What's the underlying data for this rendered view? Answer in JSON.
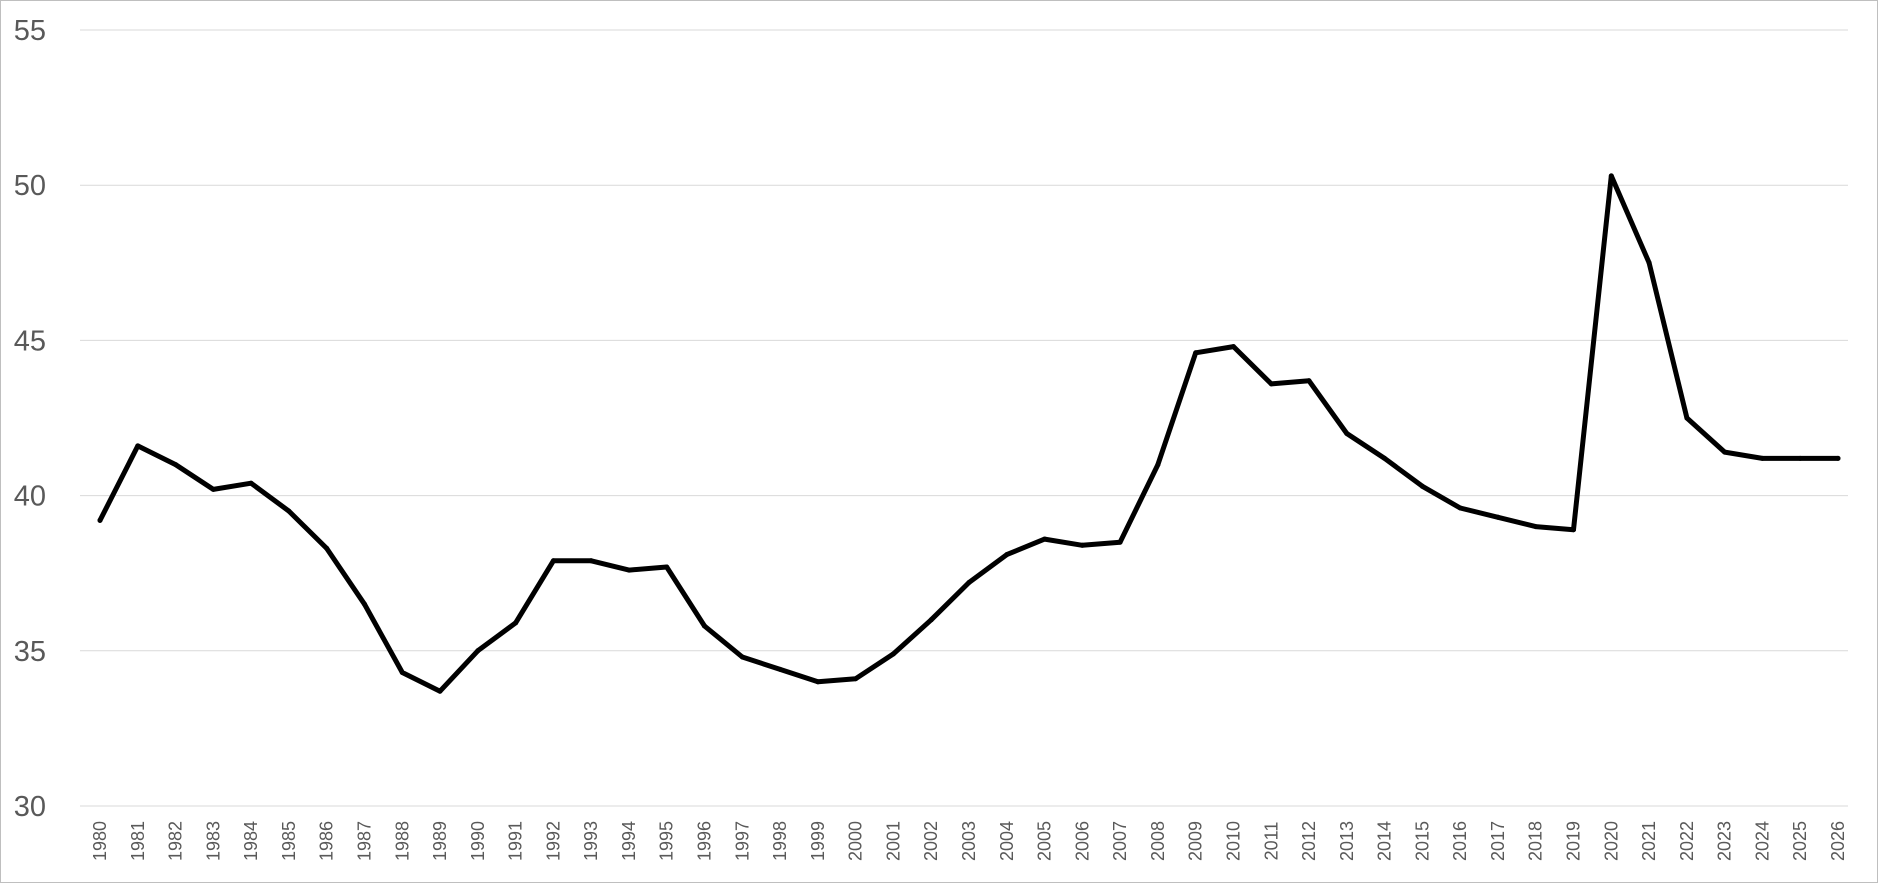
{
  "chart_data": {
    "type": "line",
    "title": "",
    "xlabel": "",
    "ylabel": "",
    "ylim": [
      30,
      55
    ],
    "yticks": [
      "30",
      "35",
      "40",
      "45",
      "50",
      "55"
    ],
    "grid": "horizontal",
    "legend": "none",
    "line_color": "#000000",
    "grid_color": "#d9d9d9",
    "tick_color": "#595959",
    "categories": [
      "1980",
      "1981",
      "1982",
      "1983",
      "1984",
      "1985",
      "1986",
      "1987",
      "1988",
      "1989",
      "1990",
      "1991",
      "1992",
      "1993",
      "1994",
      "1995",
      "1996",
      "1997",
      "1998",
      "1999",
      "2000",
      "2001",
      "2002",
      "2003",
      "2004",
      "2005",
      "2006",
      "2007",
      "2008",
      "2009",
      "2010",
      "2011",
      "2012",
      "2013",
      "2014",
      "2015",
      "2016",
      "2017",
      "2018",
      "2019",
      "2020",
      "2021",
      "2022",
      "2023",
      "2024",
      "2025",
      "2026"
    ],
    "series": [
      {
        "name": "",
        "values": [
          39.2,
          41.6,
          41.0,
          40.2,
          40.4,
          39.5,
          38.3,
          36.5,
          34.3,
          33.7,
          35.0,
          35.9,
          37.9,
          37.9,
          37.6,
          37.7,
          35.8,
          34.8,
          34.4,
          34.0,
          34.1,
          34.9,
          36.0,
          37.2,
          38.1,
          38.6,
          38.4,
          38.5,
          41.0,
          44.6,
          44.8,
          43.6,
          43.7,
          42.0,
          41.2,
          40.3,
          39.6,
          39.3,
          39.0,
          38.9,
          50.3,
          47.5,
          42.5,
          41.4,
          41.2,
          41.2,
          41.2
        ]
      }
    ]
  }
}
